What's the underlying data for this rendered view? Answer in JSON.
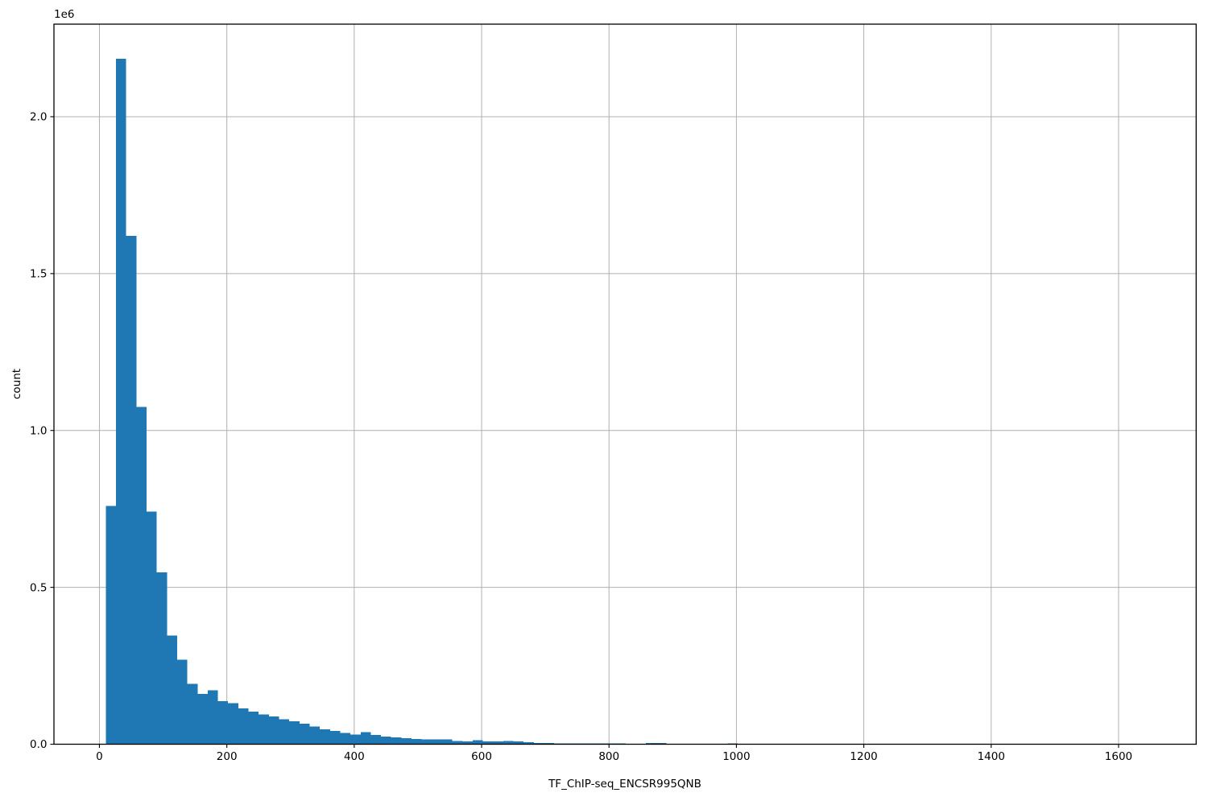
{
  "figure": {
    "background": "#ffffff"
  },
  "chart_data": {
    "type": "bar",
    "subtype": "histogram",
    "title": "",
    "xlabel": "TF_ChIP-seq_ENCSR995QNB",
    "ylabel": "count",
    "y_offset_label": "1e6",
    "bar_color": "#1f77b4",
    "grid": true,
    "grid_color": "#b0b0b0",
    "spine_color": "#000000",
    "xlim": [
      -71.4,
      1721.8
    ],
    "ylim": [
      0,
      2295000
    ],
    "x_ticks": [
      0,
      200,
      400,
      600,
      800,
      1000,
      1200,
      1400,
      1600
    ],
    "x_tick_labels": [
      "0",
      "200",
      "400",
      "600",
      "800",
      "1000",
      "1200",
      "1400",
      "1600"
    ],
    "y_ticks": [
      0,
      500000,
      1000000,
      1500000,
      2000000
    ],
    "y_tick_labels": [
      "0.0",
      "0.5",
      "1.0",
      "1.5",
      "2.0"
    ],
    "legend": null,
    "bins": {
      "start": 10,
      "width": 16,
      "count": 62
    },
    "counts": [
      760000,
      2185000,
      1620000,
      1075000,
      742000,
      548000,
      346000,
      270000,
      192000,
      160000,
      172000,
      137000,
      131000,
      114000,
      104000,
      95000,
      88000,
      80000,
      73000,
      66000,
      56000,
      48000,
      42000,
      36000,
      31000,
      38000,
      30000,
      25000,
      22000,
      19000,
      17000,
      15500,
      15000,
      15000,
      10200,
      8500,
      12700,
      8500,
      8500,
      10000,
      8500,
      6000,
      4200,
      3400,
      3000,
      2800,
      2600,
      2500,
      2400,
      2300,
      2200,
      0,
      0,
      4000,
      4000,
      0,
      0,
      0,
      0,
      0,
      0,
      3000
    ]
  }
}
